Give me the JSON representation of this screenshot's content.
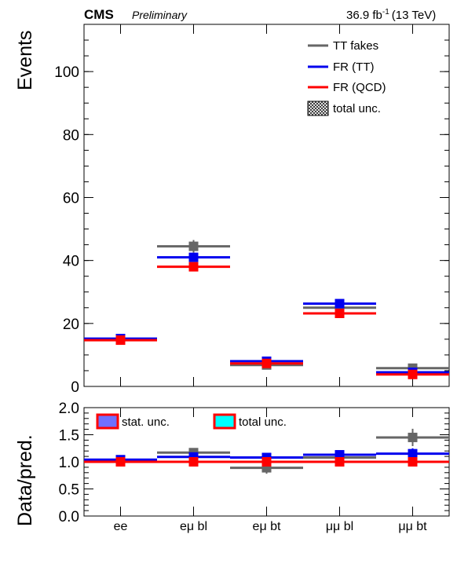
{
  "header": {
    "experiment": "CMS",
    "status": "Preliminary",
    "lumi_value": "36.9 fb",
    "lumi_exp": "-1",
    "energy": "(13 TeV)"
  },
  "chart_data": [
    {
      "type": "scatter",
      "ylabel": "Events",
      "ylim": [
        0,
        115
      ],
      "yticks": [
        0,
        20,
        40,
        60,
        80,
        100
      ],
      "categories": [
        "ee",
        "eμ bl",
        "eμ bt",
        "μμ bl",
        "μμ bt"
      ],
      "series": [
        {
          "name": "TT fakes",
          "color": "#666666",
          "values": [
            15.0,
            44.5,
            6.8,
            25.0,
            5.8
          ],
          "errors": [
            1.0,
            2.0,
            0.8,
            1.2,
            0.8
          ]
        },
        {
          "name": "FR (TT)",
          "color": "#0000ee",
          "values": [
            15.2,
            41.0,
            8.0,
            26.3,
            4.5
          ],
          "errors": [
            0.6,
            1.2,
            0.6,
            0.8,
            0.4
          ]
        },
        {
          "name": "FR (QCD)",
          "color": "#ff0000",
          "values": [
            14.7,
            38.0,
            7.3,
            23.2,
            3.8
          ],
          "errors": [
            0.5,
            1.0,
            0.5,
            0.7,
            0.4
          ]
        }
      ],
      "legend": {
        "placement": "top-right",
        "extra_entry": "total unc."
      }
    },
    {
      "type": "scatter",
      "ylabel": "Data/pred.",
      "ylim": [
        0,
        2
      ],
      "yticks": [
        "0.0",
        "0.5",
        "1.0",
        "1.5",
        "2.0"
      ],
      "categories": [
        "ee",
        "eμ bl",
        "eμ bt",
        "μμ bl",
        "μμ bt"
      ],
      "legend_entries": [
        {
          "label": "stat. unc.",
          "fill": "#7070ff",
          "border": "#ff0000"
        },
        {
          "label": "total unc.",
          "fill": "#00ffff",
          "border": "#ff0000"
        }
      ],
      "series": [
        {
          "name": "TT fakes",
          "color": "#666666",
          "values": [
            1.02,
            1.17,
            0.89,
            1.08,
            1.45
          ],
          "errors": [
            0.06,
            0.06,
            0.11,
            0.05,
            0.16
          ]
        },
        {
          "name": "FR (TT)",
          "color": "#0000ee",
          "values": [
            1.04,
            1.09,
            1.08,
            1.13,
            1.15
          ],
          "errors": [
            0.04,
            0.04,
            0.08,
            0.04,
            0.1
          ]
        },
        {
          "name": "FR (QCD)",
          "color": "#ff0000",
          "values": [
            1.0,
            1.0,
            1.0,
            1.0,
            1.0
          ],
          "errors": [
            0.03,
            0.03,
            0.05,
            0.03,
            0.05
          ]
        }
      ]
    }
  ]
}
